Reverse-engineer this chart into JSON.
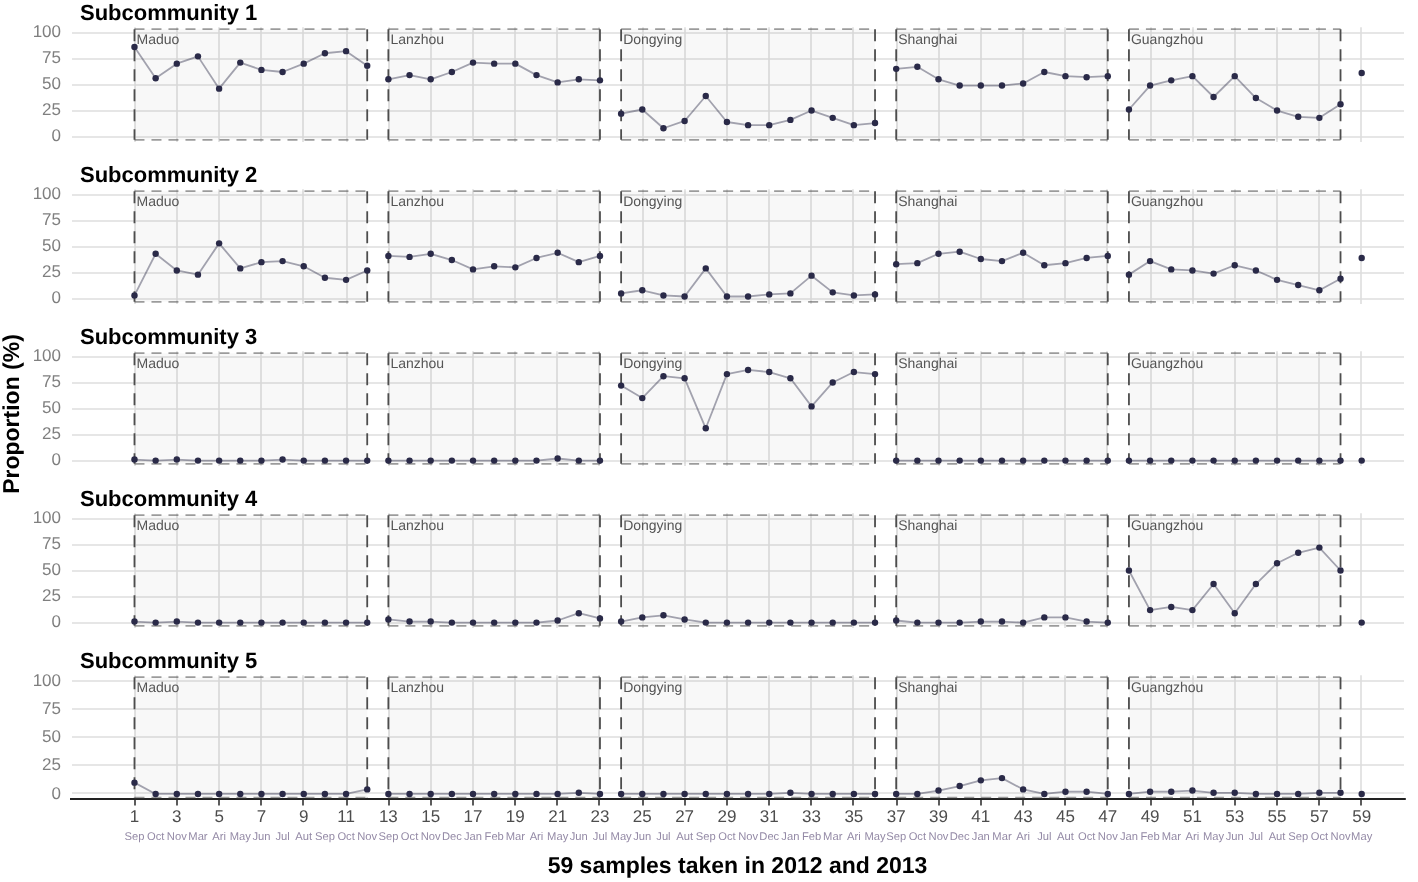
{
  "chart_data": [
    {
      "type": "line",
      "title": "Subcommunity 1",
      "x": [
        1,
        2,
        3,
        4,
        5,
        6,
        7,
        8,
        9,
        10,
        11,
        12,
        13,
        14,
        15,
        16,
        17,
        18,
        19,
        20,
        21,
        22,
        23,
        24,
        25,
        26,
        27,
        28,
        29,
        30,
        31,
        32,
        33,
        34,
        35,
        36,
        37,
        38,
        39,
        40,
        41,
        42,
        43,
        44,
        45,
        46,
        47,
        48,
        49,
        50,
        51,
        52,
        53,
        54,
        55,
        56,
        57,
        58,
        59
      ],
      "series": [
        {
          "color": "#2a2a48",
          "values": [
            86,
            56,
            70,
            77,
            46,
            71,
            64,
            62,
            70,
            80,
            82,
            68,
            55,
            59,
            55,
            62,
            71,
            70,
            70,
            59,
            52,
            55,
            54,
            22,
            26,
            8,
            15,
            39,
            14,
            11,
            11,
            16,
            25,
            18,
            11,
            13,
            65,
            67,
            55,
            49,
            49,
            49,
            51,
            62,
            58,
            57,
            58,
            26,
            49,
            54,
            58,
            38,
            58,
            37,
            25,
            19,
            18,
            31,
            null
          ]
        },
        {
          "type": "scatter",
          "color": "#2a2a48",
          "values": [
            null,
            null,
            null,
            null,
            null,
            null,
            null,
            null,
            null,
            null,
            null,
            null,
            null,
            null,
            null,
            null,
            null,
            null,
            null,
            null,
            null,
            null,
            null,
            null,
            null,
            null,
            null,
            null,
            null,
            null,
            null,
            null,
            null,
            null,
            null,
            null,
            null,
            null,
            null,
            null,
            null,
            null,
            null,
            null,
            null,
            null,
            null,
            null,
            null,
            null,
            null,
            null,
            null,
            null,
            null,
            null,
            null,
            null,
            61
          ]
        }
      ],
      "marker": "circle",
      "xlim": [
        -2,
        61
      ],
      "xticks": [
        1,
        3,
        5,
        7,
        9,
        11,
        13,
        15,
        17,
        19,
        21,
        23,
        25,
        27,
        29,
        31,
        33,
        35,
        37,
        39,
        41,
        43,
        45,
        47,
        49,
        51,
        53,
        55,
        57,
        59
      ],
      "ylim": [
        -5,
        105
      ],
      "yticks": [
        0,
        25,
        50,
        75,
        100
      ],
      "grid": true,
      "tick_labels": "y",
      "bands": [
        {
          "axis": "x",
          "from": 1,
          "to": 12,
          "label": "Maduo",
          "color": "#4d4d4d"
        },
        {
          "axis": "x",
          "from": 13,
          "to": 23,
          "label": "Lanzhou",
          "color": "#4d4d4d"
        },
        {
          "axis": "x",
          "from": 24,
          "to": 36,
          "label": "Dongying",
          "color": "#4d4d4d"
        },
        {
          "axis": "x",
          "from": 37,
          "to": 47,
          "label": "Shanghai",
          "color": "#4d4d4d"
        },
        {
          "axis": "x",
          "from": 48,
          "to": 58,
          "label": "Guangzhou",
          "color": "#4d4d4d"
        }
      ]
    },
    {
      "type": "line",
      "title": "Subcommunity 2",
      "x": [
        1,
        2,
        3,
        4,
        5,
        6,
        7,
        8,
        9,
        10,
        11,
        12,
        13,
        14,
        15,
        16,
        17,
        18,
        19,
        20,
        21,
        22,
        23,
        24,
        25,
        26,
        27,
        28,
        29,
        30,
        31,
        32,
        33,
        34,
        35,
        36,
        37,
        38,
        39,
        40,
        41,
        42,
        43,
        44,
        45,
        46,
        47,
        48,
        49,
        50,
        51,
        52,
        53,
        54,
        55,
        56,
        57,
        58,
        59
      ],
      "series": [
        {
          "color": "#2a2a48",
          "values": [
            3,
            43,
            27,
            23,
            53,
            29,
            35,
            36,
            31,
            20,
            18,
            27,
            41,
            40,
            43,
            37,
            28,
            31,
            30,
            39,
            44,
            35,
            41,
            5,
            8,
            3,
            2,
            29,
            2,
            2,
            4,
            5,
            22,
            6,
            3,
            4,
            33,
            34,
            43,
            45,
            38,
            36,
            44,
            32,
            34,
            39,
            41,
            23,
            36,
            28,
            27,
            24,
            32,
            27,
            18,
            13,
            8,
            19,
            null
          ]
        },
        {
          "type": "scatter",
          "color": "#2a2a48",
          "values": [
            null,
            null,
            null,
            null,
            null,
            null,
            null,
            null,
            null,
            null,
            null,
            null,
            null,
            null,
            null,
            null,
            null,
            null,
            null,
            null,
            null,
            null,
            null,
            null,
            null,
            null,
            null,
            null,
            null,
            null,
            null,
            null,
            null,
            null,
            null,
            null,
            null,
            null,
            null,
            null,
            null,
            null,
            null,
            null,
            null,
            null,
            null,
            null,
            null,
            null,
            null,
            null,
            null,
            null,
            null,
            null,
            null,
            null,
            39
          ]
        }
      ],
      "marker": "circle",
      "xlim": [
        -2,
        61
      ],
      "xticks": [
        1,
        3,
        5,
        7,
        9,
        11,
        13,
        15,
        17,
        19,
        21,
        23,
        25,
        27,
        29,
        31,
        33,
        35,
        37,
        39,
        41,
        43,
        45,
        47,
        49,
        51,
        53,
        55,
        57,
        59
      ],
      "ylim": [
        -5,
        105
      ],
      "yticks": [
        0,
        25,
        50,
        75,
        100
      ],
      "grid": true,
      "tick_labels": "y",
      "bands": [
        {
          "axis": "x",
          "from": 1,
          "to": 12,
          "label": "Maduo",
          "color": "#4d4d4d"
        },
        {
          "axis": "x",
          "from": 13,
          "to": 23,
          "label": "Lanzhou",
          "color": "#4d4d4d"
        },
        {
          "axis": "x",
          "from": 24,
          "to": 36,
          "label": "Dongying",
          "color": "#4d4d4d"
        },
        {
          "axis": "x",
          "from": 37,
          "to": 47,
          "label": "Shanghai",
          "color": "#4d4d4d"
        },
        {
          "axis": "x",
          "from": 48,
          "to": 58,
          "label": "Guangzhou",
          "color": "#4d4d4d"
        }
      ]
    },
    {
      "type": "line",
      "title": "Subcommunity 3",
      "ylabel": "Proportion (%)",
      "x": [
        1,
        2,
        3,
        4,
        5,
        6,
        7,
        8,
        9,
        10,
        11,
        12,
        13,
        14,
        15,
        16,
        17,
        18,
        19,
        20,
        21,
        22,
        23,
        24,
        25,
        26,
        27,
        28,
        29,
        30,
        31,
        32,
        33,
        34,
        35,
        36,
        37,
        38,
        39,
        40,
        41,
        42,
        43,
        44,
        45,
        46,
        47,
        48,
        49,
        50,
        51,
        52,
        53,
        54,
        55,
        56,
        57,
        58,
        59
      ],
      "series": [
        {
          "color": "#2a2a48",
          "values": [
            1,
            0,
            1,
            0,
            0,
            0,
            0,
            1,
            0,
            0,
            0,
            0,
            0,
            0,
            0,
            0,
            0,
            0,
            0,
            0,
            2,
            0,
            0,
            72,
            60,
            81,
            79,
            31,
            83,
            87,
            85,
            79,
            52,
            75,
            85,
            83,
            0,
            0,
            0,
            0,
            0,
            0,
            0,
            0,
            0,
            0,
            0,
            0,
            0,
            0,
            0,
            0,
            0,
            0,
            0,
            0,
            0,
            0,
            null
          ]
        },
        {
          "type": "scatter",
          "color": "#2a2a48",
          "values": [
            null,
            null,
            null,
            null,
            null,
            null,
            null,
            null,
            null,
            null,
            null,
            null,
            null,
            null,
            null,
            null,
            null,
            null,
            null,
            null,
            null,
            null,
            null,
            null,
            null,
            null,
            null,
            null,
            null,
            null,
            null,
            null,
            null,
            null,
            null,
            null,
            null,
            null,
            null,
            null,
            null,
            null,
            null,
            null,
            null,
            null,
            null,
            null,
            null,
            null,
            null,
            null,
            null,
            null,
            null,
            null,
            null,
            null,
            0
          ]
        }
      ],
      "marker": "circle",
      "xlim": [
        -2,
        61
      ],
      "xticks": [
        1,
        3,
        5,
        7,
        9,
        11,
        13,
        15,
        17,
        19,
        21,
        23,
        25,
        27,
        29,
        31,
        33,
        35,
        37,
        39,
        41,
        43,
        45,
        47,
        49,
        51,
        53,
        55,
        57,
        59
      ],
      "ylim": [
        -5,
        105
      ],
      "yticks": [
        0,
        25,
        50,
        75,
        100
      ],
      "grid": true,
      "tick_labels": "y",
      "bands": [
        {
          "axis": "x",
          "from": 1,
          "to": 12,
          "label": "Maduo",
          "color": "#4d4d4d"
        },
        {
          "axis": "x",
          "from": 13,
          "to": 23,
          "label": "Lanzhou",
          "color": "#4d4d4d"
        },
        {
          "axis": "x",
          "from": 24,
          "to": 36,
          "label": "Dongying",
          "color": "#4d4d4d"
        },
        {
          "axis": "x",
          "from": 37,
          "to": 47,
          "label": "Shanghai",
          "color": "#4d4d4d"
        },
        {
          "axis": "x",
          "from": 48,
          "to": 58,
          "label": "Guangzhou",
          "color": "#4d4d4d"
        }
      ]
    },
    {
      "type": "line",
      "title": "Subcommunity 4",
      "x": [
        1,
        2,
        3,
        4,
        5,
        6,
        7,
        8,
        9,
        10,
        11,
        12,
        13,
        14,
        15,
        16,
        17,
        18,
        19,
        20,
        21,
        22,
        23,
        24,
        25,
        26,
        27,
        28,
        29,
        30,
        31,
        32,
        33,
        34,
        35,
        36,
        37,
        38,
        39,
        40,
        41,
        42,
        43,
        44,
        45,
        46,
        47,
        48,
        49,
        50,
        51,
        52,
        53,
        54,
        55,
        56,
        57,
        58,
        59
      ],
      "series": [
        {
          "color": "#2a2a48",
          "values": [
            1,
            0,
            1,
            0,
            0,
            0,
            0,
            0,
            0,
            0,
            0,
            0,
            3,
            1,
            1,
            0,
            0,
            0,
            0,
            0,
            2,
            9,
            4,
            1,
            5,
            7,
            3,
            0,
            0,
            0,
            0,
            0,
            0,
            0,
            0,
            0,
            2,
            0,
            0,
            0,
            1,
            1,
            0,
            5,
            5,
            1,
            0,
            50,
            12,
            15,
            12,
            37,
            9,
            37,
            57,
            67,
            72,
            50,
            null
          ]
        },
        {
          "type": "scatter",
          "color": "#2a2a48",
          "values": [
            null,
            null,
            null,
            null,
            null,
            null,
            null,
            null,
            null,
            null,
            null,
            null,
            null,
            null,
            null,
            null,
            null,
            null,
            null,
            null,
            null,
            null,
            null,
            null,
            null,
            null,
            null,
            null,
            null,
            null,
            null,
            null,
            null,
            null,
            null,
            null,
            null,
            null,
            null,
            null,
            null,
            null,
            null,
            null,
            null,
            null,
            null,
            null,
            null,
            null,
            null,
            null,
            null,
            null,
            null,
            null,
            null,
            null,
            0
          ]
        }
      ],
      "marker": "circle",
      "xlim": [
        -2,
        61
      ],
      "xticks": [
        1,
        3,
        5,
        7,
        9,
        11,
        13,
        15,
        17,
        19,
        21,
        23,
        25,
        27,
        29,
        31,
        33,
        35,
        37,
        39,
        41,
        43,
        45,
        47,
        49,
        51,
        53,
        55,
        57,
        59
      ],
      "ylim": [
        -5,
        105
      ],
      "yticks": [
        0,
        25,
        50,
        75,
        100
      ],
      "grid": true,
      "tick_labels": "y",
      "bands": [
        {
          "axis": "x",
          "from": 1,
          "to": 12,
          "label": "Maduo",
          "color": "#4d4d4d"
        },
        {
          "axis": "x",
          "from": 13,
          "to": 23,
          "label": "Lanzhou",
          "color": "#4d4d4d"
        },
        {
          "axis": "x",
          "from": 24,
          "to": 36,
          "label": "Dongying",
          "color": "#4d4d4d"
        },
        {
          "axis": "x",
          "from": 37,
          "to": 47,
          "label": "Shanghai",
          "color": "#4d4d4d"
        },
        {
          "axis": "x",
          "from": 48,
          "to": 58,
          "label": "Guangzhou",
          "color": "#4d4d4d"
        }
      ]
    },
    {
      "type": "line",
      "title": "Subcommunity 5",
      "xlabel": "59 samples taken in 2012 and 2013",
      "x": [
        1,
        2,
        3,
        4,
        5,
        6,
        7,
        8,
        9,
        10,
        11,
        12,
        13,
        14,
        15,
        16,
        17,
        18,
        19,
        20,
        21,
        22,
        23,
        24,
        25,
        26,
        27,
        28,
        29,
        30,
        31,
        32,
        33,
        34,
        35,
        36,
        37,
        38,
        39,
        40,
        41,
        42,
        43,
        44,
        45,
        46,
        47,
        48,
        49,
        50,
        51,
        52,
        53,
        54,
        55,
        56,
        57,
        58,
        59
      ],
      "series": [
        {
          "color": "#2a2a48",
          "values": [
            10,
            0,
            0,
            0,
            0,
            0,
            0,
            0,
            0,
            0,
            0,
            4,
            0,
            0,
            0,
            0,
            0,
            0,
            0,
            0,
            0,
            1,
            0,
            0,
            0,
            0,
            0,
            0,
            0,
            0,
            0,
            1,
            0,
            0,
            0,
            0,
            0,
            0,
            3,
            7,
            12,
            14,
            4,
            0,
            2,
            2,
            0,
            0,
            2,
            2,
            3,
            1,
            1,
            0,
            0,
            0,
            1,
            1,
            null
          ]
        },
        {
          "type": "scatter",
          "color": "#2a2a48",
          "values": [
            null,
            null,
            null,
            null,
            null,
            null,
            null,
            null,
            null,
            null,
            null,
            null,
            null,
            null,
            null,
            null,
            null,
            null,
            null,
            null,
            null,
            null,
            null,
            null,
            null,
            null,
            null,
            null,
            null,
            null,
            null,
            null,
            null,
            null,
            null,
            null,
            null,
            null,
            null,
            null,
            null,
            null,
            null,
            null,
            null,
            null,
            null,
            null,
            null,
            null,
            null,
            null,
            null,
            null,
            null,
            null,
            null,
            null,
            0
          ]
        }
      ],
      "marker": "circle",
      "xlim": [
        -2,
        61
      ],
      "xticks": [
        1,
        3,
        5,
        7,
        9,
        11,
        13,
        15,
        17,
        19,
        21,
        23,
        25,
        27,
        29,
        31,
        33,
        35,
        37,
        39,
        41,
        43,
        45,
        47,
        49,
        51,
        53,
        55,
        57,
        59
      ],
      "ylim": [
        -5,
        105
      ],
      "yticks": [
        0,
        25,
        50,
        75,
        100
      ],
      "grid": true,
      "bands": [
        {
          "axis": "x",
          "from": 1,
          "to": 12,
          "label": "Maduo",
          "color": "#4d4d4d"
        },
        {
          "axis": "x",
          "from": 13,
          "to": 23,
          "label": "Lanzhou",
          "color": "#4d4d4d"
        },
        {
          "axis": "x",
          "from": 24,
          "to": 36,
          "label": "Dongying",
          "color": "#4d4d4d"
        },
        {
          "axis": "x",
          "from": 37,
          "to": 47,
          "label": "Shanghai",
          "color": "#4d4d4d"
        },
        {
          "axis": "x",
          "from": 48,
          "to": 58,
          "label": "Guangzhou",
          "color": "#4d4d4d"
        }
      ],
      "annotations": [
        "Sep",
        "Oct",
        "Nov",
        "Mar",
        "Ari",
        "May",
        "Jun",
        "Jul",
        "Aut",
        "Sep",
        "Oct",
        "Nov",
        "Sep",
        "Oct",
        "Nov",
        "Dec",
        "Jan",
        "Feb",
        "Mar",
        "Ari",
        "May",
        "Jun",
        "Jul",
        "May",
        "Jun",
        "Jul",
        "Aut",
        "Sep",
        "Oct",
        "Nov",
        "Dec",
        "Jan",
        "Feb",
        "Mar",
        "Ari",
        "May",
        "Sep",
        "Oct",
        "Nov",
        "Dec",
        "Jan",
        "Mar",
        "Ari",
        "Jul",
        "Aut",
        "Oct",
        "Nov",
        "Jan",
        "Feb",
        "Mar",
        "Ari",
        "May",
        "Jun",
        "Jul",
        "Aut",
        "Sep",
        "Oct",
        "Nov",
        "May"
      ]
    }
  ]
}
